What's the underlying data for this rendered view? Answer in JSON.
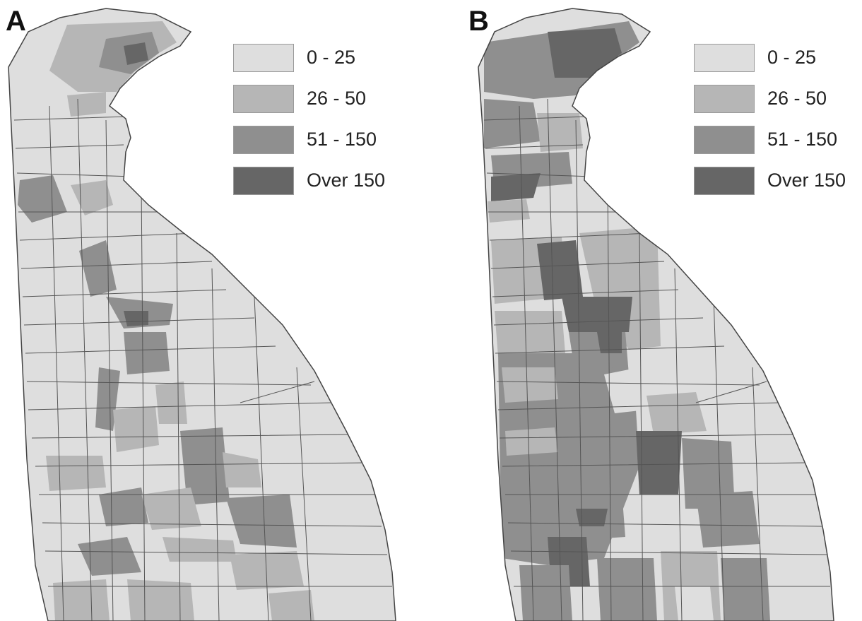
{
  "colors": {
    "class_0_25": "#dedede",
    "class_26_50": "#b6b6b6",
    "class_51_150": "#8f8f8f",
    "class_over_150": "#666666",
    "boundary": "#555555",
    "background": "#ffffff"
  },
  "panels": [
    {
      "label": "A",
      "legend": [
        {
          "label": "0 - 25",
          "color": "#dedede"
        },
        {
          "label": "26 - 50",
          "color": "#b6b6b6"
        },
        {
          "label": "51 - 150",
          "color": "#8f8f8f"
        },
        {
          "label": "Over 150",
          "color": "#666666"
        }
      ]
    },
    {
      "label": "B",
      "legend": [
        {
          "label": "0 - 25",
          "color": "#dedede"
        },
        {
          "label": "26 - 50",
          "color": "#b6b6b6"
        },
        {
          "label": "51 - 150",
          "color": "#8f8f8f"
        },
        {
          "label": "Over 150",
          "color": "#666666"
        }
      ]
    }
  ]
}
